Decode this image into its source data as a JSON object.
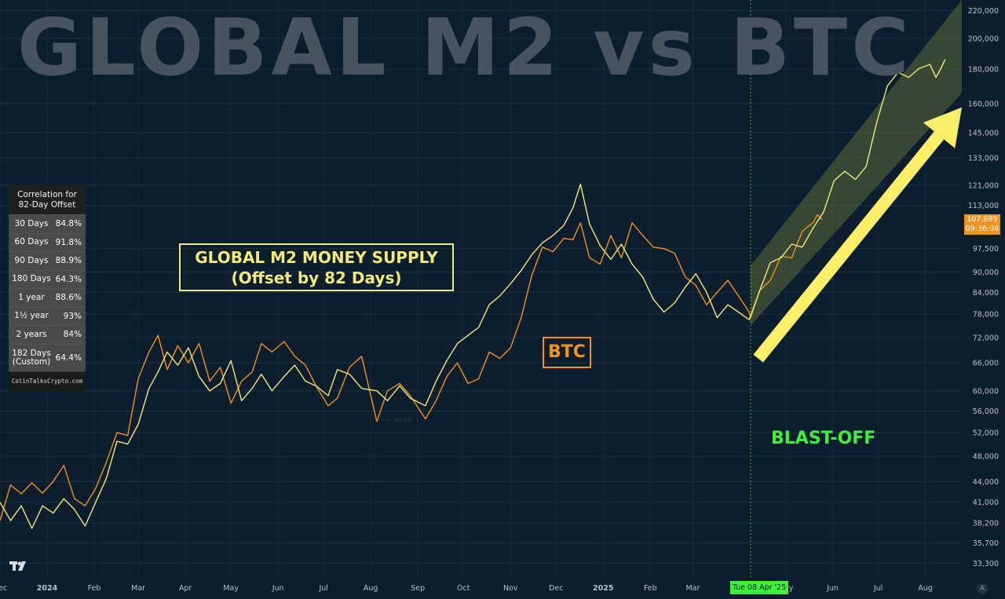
{
  "watermark": "GLOBAL M2 vs BTC",
  "correlation_table": {
    "title_line1": "Correlation for",
    "title_line2": "82-Day Offset",
    "rows": [
      {
        "label": "30 Days",
        "value": "84.8%"
      },
      {
        "label": "60 Days",
        "value": "91.8%"
      },
      {
        "label": "90 Days",
        "value": "88.9%"
      },
      {
        "label": "180 Days",
        "value": "64.3%"
      },
      {
        "label": "1 year",
        "value": "88.6%"
      },
      {
        "label": "1½ year",
        "value": "93%"
      },
      {
        "label": "2 years",
        "value": "84%"
      },
      {
        "label_line1": "182 Days",
        "label_line2": "(Custom)",
        "value": "64.4%"
      }
    ],
    "footer": "ColinTalksCrypto.com"
  },
  "annotations": {
    "m2_line1": "GLOBAL M2 MONEY SUPPLY",
    "m2_line2": "(Offset by 82 Days)",
    "btc": "BTC",
    "blast_off": "BLAST-OFF",
    "whale": "— — whale"
  },
  "price_tag": {
    "value": "107,699",
    "countdown": "09:36:06",
    "color": "#f0921e"
  },
  "date_tag": {
    "label": "Tue 08 Apr '25",
    "color": "#3cf03c"
  },
  "log_button": "A",
  "colors": {
    "background": "#0c1e2e",
    "btc": "#f0921e",
    "m2": "#f3e97a",
    "channel": "#5a6b3a",
    "arrow": "#fbef6a",
    "blast": "#3cf03c"
  },
  "chart_data": {
    "type": "line",
    "y_scale": "log",
    "ylim": [
      31500,
      228000
    ],
    "xlim": [
      "2023-12-01",
      "2025-08-25"
    ],
    "y_ticks": [
      {
        "value": 220000,
        "label": "220,000"
      },
      {
        "value": 200000,
        "label": "200,000"
      },
      {
        "value": 180000,
        "label": "180,000"
      },
      {
        "value": 160000,
        "label": "160,000"
      },
      {
        "value": 145000,
        "label": "145,000"
      },
      {
        "value": 133000,
        "label": "133,000"
      },
      {
        "value": 121000,
        "label": "121,000"
      },
      {
        "value": 113000,
        "label": "113,000"
      },
      {
        "value": 97500,
        "label": "97,500"
      },
      {
        "value": 90000,
        "label": "90,000"
      },
      {
        "value": 84000,
        "label": "84,000"
      },
      {
        "value": 78000,
        "label": "78,000"
      },
      {
        "value": 72000,
        "label": "72,000"
      },
      {
        "value": 66000,
        "label": "66,000"
      },
      {
        "value": 60000,
        "label": "60,000"
      },
      {
        "value": 56000,
        "label": "56,000"
      },
      {
        "value": 52000,
        "label": "52,000"
      },
      {
        "value": 48000,
        "label": "48,000"
      },
      {
        "value": 44000,
        "label": "44,000"
      },
      {
        "value": 41000,
        "label": "41,000"
      },
      {
        "value": 38200,
        "label": "38,200"
      },
      {
        "value": 35700,
        "label": "35,700"
      },
      {
        "value": 33300,
        "label": "33,300"
      }
    ],
    "x_ticks": [
      {
        "date": "2023-12-01",
        "label": "Dec",
        "bold": false
      },
      {
        "date": "2024-01-01",
        "label": "2024",
        "bold": true
      },
      {
        "date": "2024-02-01",
        "label": "Feb",
        "bold": false
      },
      {
        "date": "2024-03-01",
        "label": "Mar",
        "bold": false
      },
      {
        "date": "2024-04-01",
        "label": "Apr",
        "bold": false
      },
      {
        "date": "2024-05-01",
        "label": "May",
        "bold": false
      },
      {
        "date": "2024-06-01",
        "label": "Jun",
        "bold": false
      },
      {
        "date": "2024-07-01",
        "label": "Jul",
        "bold": false
      },
      {
        "date": "2024-08-01",
        "label": "Aug",
        "bold": false
      },
      {
        "date": "2024-09-01",
        "label": "Sep",
        "bold": false
      },
      {
        "date": "2024-10-01",
        "label": "Oct",
        "bold": false
      },
      {
        "date": "2024-11-01",
        "label": "Nov",
        "bold": false
      },
      {
        "date": "2024-12-01",
        "label": "Dec",
        "bold": false
      },
      {
        "date": "2025-01-01",
        "label": "2025",
        "bold": true
      },
      {
        "date": "2025-02-01",
        "label": "Feb",
        "bold": false
      },
      {
        "date": "2025-03-01",
        "label": "Mar",
        "bold": false
      },
      {
        "date": "2025-05-01",
        "label": "May",
        "bold": false
      },
      {
        "date": "2025-06-01",
        "label": "Jun",
        "bold": false
      },
      {
        "date": "2025-07-01",
        "label": "Jul",
        "bold": false
      },
      {
        "date": "2025-08-01",
        "label": "Aug",
        "bold": false
      }
    ],
    "vertical_marker": "2025-04-08",
    "channel": {
      "upper": [
        [
          "2025-04-08",
          92000
        ],
        [
          "2025-08-25",
          228000
        ]
      ],
      "lower": [
        [
          "2025-04-08",
          75000
        ],
        [
          "2025-08-25",
          166000
        ]
      ]
    },
    "arrow": {
      "from": [
        "2025-04-13",
        67000
      ],
      "to": [
        "2025-08-25",
        158000
      ]
    },
    "series": [
      {
        "name": "BTC",
        "color": "#f0921e",
        "points": [
          [
            "2023-12-01",
            38500
          ],
          [
            "2023-12-08",
            43500
          ],
          [
            "2023-12-15",
            42200
          ],
          [
            "2023-12-22",
            43800
          ],
          [
            "2023-12-29",
            42300
          ],
          [
            "2024-01-05",
            44000
          ],
          [
            "2024-01-12",
            46500
          ],
          [
            "2024-01-19",
            41500
          ],
          [
            "2024-01-26",
            40500
          ],
          [
            "2024-02-02",
            43000
          ],
          [
            "2024-02-09",
            47000
          ],
          [
            "2024-02-16",
            52000
          ],
          [
            "2024-02-23",
            51500
          ],
          [
            "2024-03-01",
            62500
          ],
          [
            "2024-03-08",
            68500
          ],
          [
            "2024-03-14",
            72500
          ],
          [
            "2024-03-20",
            64500
          ],
          [
            "2024-03-27",
            70000
          ],
          [
            "2024-04-03",
            66000
          ],
          [
            "2024-04-10",
            70500
          ],
          [
            "2024-04-17",
            62000
          ],
          [
            "2024-04-24",
            65000
          ],
          [
            "2024-05-01",
            57500
          ],
          [
            "2024-05-08",
            62000
          ],
          [
            "2024-05-15",
            64000
          ],
          [
            "2024-05-21",
            70500
          ],
          [
            "2024-05-28",
            68500
          ],
          [
            "2024-06-05",
            71000
          ],
          [
            "2024-06-12",
            67500
          ],
          [
            "2024-06-19",
            65500
          ],
          [
            "2024-06-26",
            61000
          ],
          [
            "2024-07-04",
            57000
          ],
          [
            "2024-07-10",
            58500
          ],
          [
            "2024-07-18",
            65000
          ],
          [
            "2024-07-26",
            67500
          ],
          [
            "2024-08-05",
            54000
          ],
          [
            "2024-08-12",
            60000
          ],
          [
            "2024-08-20",
            61500
          ],
          [
            "2024-08-27",
            59000
          ],
          [
            "2024-09-06",
            54500
          ],
          [
            "2024-09-13",
            58000
          ],
          [
            "2024-09-20",
            63000
          ],
          [
            "2024-09-27",
            66000
          ],
          [
            "2024-10-04",
            61500
          ],
          [
            "2024-10-11",
            62500
          ],
          [
            "2024-10-18",
            68500
          ],
          [
            "2024-10-25",
            67000
          ],
          [
            "2024-11-01",
            69500
          ],
          [
            "2024-11-08",
            77000
          ],
          [
            "2024-11-15",
            89000
          ],
          [
            "2024-11-22",
            98000
          ],
          [
            "2024-11-29",
            96500
          ],
          [
            "2024-12-06",
            101000
          ],
          [
            "2024-12-12",
            100500
          ],
          [
            "2024-12-17",
            106500
          ],
          [
            "2024-12-23",
            94500
          ],
          [
            "2024-12-30",
            92500
          ],
          [
            "2025-01-06",
            102000
          ],
          [
            "2025-01-13",
            94500
          ],
          [
            "2025-01-20",
            106500
          ],
          [
            "2025-01-27",
            102000
          ],
          [
            "2025-02-03",
            98000
          ],
          [
            "2025-02-10",
            97500
          ],
          [
            "2025-02-17",
            96000
          ],
          [
            "2025-02-24",
            88500
          ],
          [
            "2025-03-03",
            86000
          ],
          [
            "2025-03-10",
            80500
          ],
          [
            "2025-03-17",
            84000
          ],
          [
            "2025-03-24",
            87500
          ],
          [
            "2025-03-31",
            83000
          ],
          [
            "2025-04-07",
            78500
          ],
          [
            "2025-04-08",
            77000
          ],
          [
            "2025-04-14",
            84500
          ],
          [
            "2025-04-21",
            87500
          ],
          [
            "2025-04-28",
            95000
          ],
          [
            "2025-05-05",
            94500
          ],
          [
            "2025-05-12",
            103500
          ],
          [
            "2025-05-19",
            106500
          ],
          [
            "2025-05-22",
            109500
          ],
          [
            "2025-05-25",
            107699
          ]
        ]
      },
      {
        "name": "Global M2 (offset 82 days)",
        "color": "#f3e97a",
        "points": [
          [
            "2023-12-01",
            41000
          ],
          [
            "2023-12-08",
            38500
          ],
          [
            "2023-12-15",
            40500
          ],
          [
            "2023-12-22",
            37500
          ],
          [
            "2023-12-29",
            40500
          ],
          [
            "2024-01-05",
            39500
          ],
          [
            "2024-01-12",
            41500
          ],
          [
            "2024-01-19",
            40000
          ],
          [
            "2024-01-26",
            37800
          ],
          [
            "2024-02-02",
            41000
          ],
          [
            "2024-02-09",
            44500
          ],
          [
            "2024-02-16",
            50500
          ],
          [
            "2024-02-23",
            50000
          ],
          [
            "2024-03-01",
            53500
          ],
          [
            "2024-03-08",
            60500
          ],
          [
            "2024-03-14",
            64000
          ],
          [
            "2024-03-20",
            68500
          ],
          [
            "2024-03-27",
            65500
          ],
          [
            "2024-04-03",
            69500
          ],
          [
            "2024-04-10",
            63000
          ],
          [
            "2024-04-17",
            60000
          ],
          [
            "2024-04-24",
            61500
          ],
          [
            "2024-05-01",
            66500
          ],
          [
            "2024-05-08",
            58000
          ],
          [
            "2024-05-15",
            60500
          ],
          [
            "2024-05-21",
            63500
          ],
          [
            "2024-05-28",
            60000
          ],
          [
            "2024-06-05",
            63000
          ],
          [
            "2024-06-12",
            65500
          ],
          [
            "2024-06-19",
            62000
          ],
          [
            "2024-06-26",
            61000
          ],
          [
            "2024-07-04",
            59000
          ],
          [
            "2024-07-10",
            64500
          ],
          [
            "2024-07-18",
            63500
          ],
          [
            "2024-07-26",
            60500
          ],
          [
            "2024-08-05",
            60000
          ],
          [
            "2024-08-12",
            58000
          ],
          [
            "2024-08-20",
            61000
          ],
          [
            "2024-08-27",
            58500
          ],
          [
            "2024-09-06",
            57000
          ],
          [
            "2024-09-13",
            62000
          ],
          [
            "2024-09-20",
            66500
          ],
          [
            "2024-09-27",
            70500
          ],
          [
            "2024-10-04",
            72500
          ],
          [
            "2024-10-11",
            74500
          ],
          [
            "2024-10-18",
            80500
          ],
          [
            "2024-10-25",
            83000
          ],
          [
            "2024-11-01",
            86500
          ],
          [
            "2024-11-08",
            90500
          ],
          [
            "2024-11-15",
            95500
          ],
          [
            "2024-11-22",
            99500
          ],
          [
            "2024-11-29",
            102000
          ],
          [
            "2024-12-06",
            105500
          ],
          [
            "2024-12-12",
            112000
          ],
          [
            "2024-12-17",
            121500
          ],
          [
            "2024-12-23",
            106000
          ],
          [
            "2024-12-30",
            98500
          ],
          [
            "2025-01-06",
            94000
          ],
          [
            "2025-01-13",
            99000
          ],
          [
            "2025-01-20",
            92500
          ],
          [
            "2025-01-27",
            88500
          ],
          [
            "2025-02-03",
            82000
          ],
          [
            "2025-02-10",
            78500
          ],
          [
            "2025-02-17",
            81000
          ],
          [
            "2025-02-24",
            85500
          ],
          [
            "2025-03-03",
            89500
          ],
          [
            "2025-03-10",
            84000
          ],
          [
            "2025-03-17",
            77000
          ],
          [
            "2025-03-24",
            80500
          ],
          [
            "2025-03-31",
            78500
          ],
          [
            "2025-04-07",
            76500
          ],
          [
            "2025-04-08",
            77500
          ],
          [
            "2025-04-14",
            84500
          ],
          [
            "2025-04-21",
            93000
          ],
          [
            "2025-04-28",
            94500
          ],
          [
            "2025-05-05",
            99000
          ],
          [
            "2025-05-12",
            98000
          ],
          [
            "2025-05-19",
            104500
          ],
          [
            "2025-05-26",
            110500
          ],
          [
            "2025-06-02",
            123000
          ],
          [
            "2025-06-09",
            127000
          ],
          [
            "2025-06-16",
            123500
          ],
          [
            "2025-06-23",
            129000
          ],
          [
            "2025-06-30",
            150000
          ],
          [
            "2025-07-07",
            170000
          ],
          [
            "2025-07-14",
            178000
          ],
          [
            "2025-07-21",
            175000
          ],
          [
            "2025-07-28",
            180500
          ],
          [
            "2025-08-04",
            183000
          ],
          [
            "2025-08-08",
            175000
          ],
          [
            "2025-08-11",
            180000
          ],
          [
            "2025-08-14",
            186000
          ]
        ]
      }
    ]
  }
}
